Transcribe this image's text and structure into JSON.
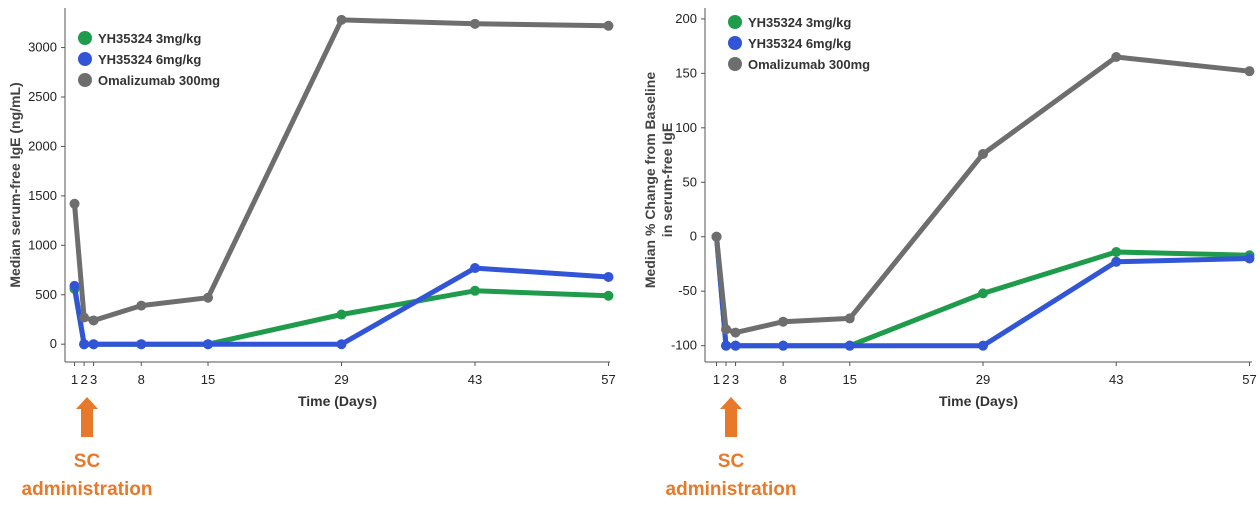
{
  "chart_data": [
    {
      "type": "line",
      "xlabel": "Time (Days)",
      "ylabel": "Median serum-free IgE (ng/mL)",
      "x_ticks": [
        1,
        2,
        3,
        8,
        15,
        29,
        43,
        57
      ],
      "y_ticks": [
        0,
        500,
        1000,
        1500,
        2000,
        2500,
        3000
      ],
      "xlim": [
        0,
        58
      ],
      "ylim": [
        -180,
        3400
      ],
      "grid": false,
      "legend": "top-left",
      "series": [
        {
          "name": "YH35324 3mg/kg",
          "color": "#1E9B4B",
          "x": [
            1,
            2,
            3,
            8,
            15,
            29,
            43,
            57
          ],
          "y": [
            560,
            0,
            0,
            0,
            0,
            300,
            540,
            490
          ]
        },
        {
          "name": "YH35324 6mg/kg",
          "color": "#3155D6",
          "x": [
            1,
            2,
            3,
            8,
            15,
            29,
            43,
            57
          ],
          "y": [
            590,
            0,
            0,
            0,
            0,
            0,
            770,
            680
          ]
        },
        {
          "name": "Omalizumab 300mg",
          "color": "#6E6E6E",
          "x": [
            1,
            2,
            3,
            8,
            15,
            29,
            43,
            57
          ],
          "y": [
            1420,
            270,
            240,
            390,
            470,
            3280,
            3240,
            3220
          ]
        }
      ]
    },
    {
      "type": "line",
      "xlabel": "Time (Days)",
      "ylabel": "Median % Change from Baseline in serum-free IgE",
      "ylabel_lines": [
        "Median % Change from Baseline",
        "in serum-free IgE"
      ],
      "x_ticks": [
        1,
        2,
        3,
        8,
        15,
        29,
        43,
        57
      ],
      "y_ticks": [
        -100,
        -50,
        0,
        50,
        100,
        150,
        200
      ],
      "xlim": [
        0,
        58
      ],
      "ylim": [
        -115,
        210
      ],
      "grid": false,
      "legend": "top-left",
      "series": [
        {
          "name": "YH35324 3mg/kg",
          "color": "#1E9B4B",
          "x": [
            1,
            2,
            3,
            8,
            15,
            29,
            43,
            57
          ],
          "y": [
            0,
            -100,
            -100,
            -100,
            -100,
            -52,
            -14,
            -17
          ]
        },
        {
          "name": "YH35324 6mg/kg",
          "color": "#3155D6",
          "x": [
            1,
            2,
            3,
            8,
            15,
            29,
            43,
            57
          ],
          "y": [
            0,
            -100,
            -100,
            -100,
            -100,
            -100,
            -23,
            -20
          ]
        },
        {
          "name": "Omalizumab 300mg",
          "color": "#6E6E6E",
          "x": [
            1,
            2,
            3,
            8,
            15,
            29,
            43,
            57
          ],
          "y": [
            0,
            -85,
            -88,
            -78,
            -75,
            76,
            165,
            152
          ]
        }
      ]
    }
  ],
  "annotation": {
    "line1": "SC",
    "line2": "administration",
    "color": "#E8792A"
  }
}
